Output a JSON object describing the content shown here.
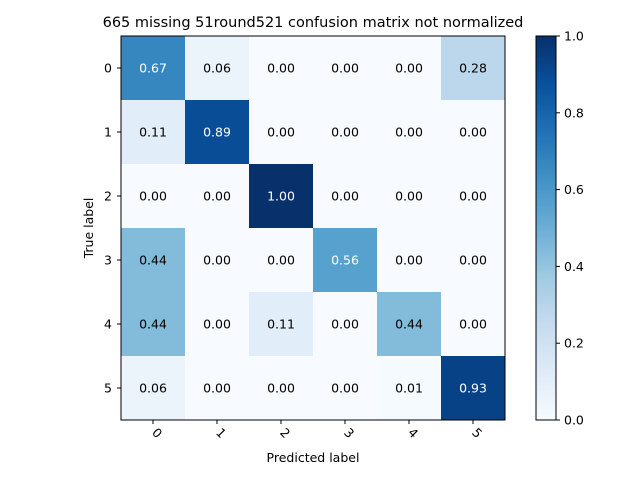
{
  "chart_data": {
    "type": "heatmap",
    "title": "665 missing 51round521 confusion matrix not normalized",
    "xlabel": "Predicted label",
    "ylabel": "True label",
    "x_ticks": [
      "0",
      "1",
      "2",
      "3",
      "4",
      "5"
    ],
    "y_ticks": [
      "0",
      "1",
      "2",
      "3",
      "4",
      "5"
    ],
    "values": [
      [
        0.67,
        0.06,
        0.0,
        0.0,
        0.0,
        0.28
      ],
      [
        0.11,
        0.89,
        0.0,
        0.0,
        0.0,
        0.0
      ],
      [
        0.0,
        0.0,
        1.0,
        0.0,
        0.0,
        0.0
      ],
      [
        0.44,
        0.0,
        0.0,
        0.56,
        0.0,
        0.0
      ],
      [
        0.44,
        0.0,
        0.11,
        0.0,
        0.44,
        0.0
      ],
      [
        0.06,
        0.0,
        0.0,
        0.0,
        0.01,
        0.93
      ]
    ],
    "colormap": "Blues",
    "colorbar": {
      "ticks": [
        "0.0",
        "0.2",
        "0.4",
        "0.6",
        "0.8",
        "1.0"
      ],
      "range": [
        0,
        1
      ]
    },
    "grid": false
  }
}
